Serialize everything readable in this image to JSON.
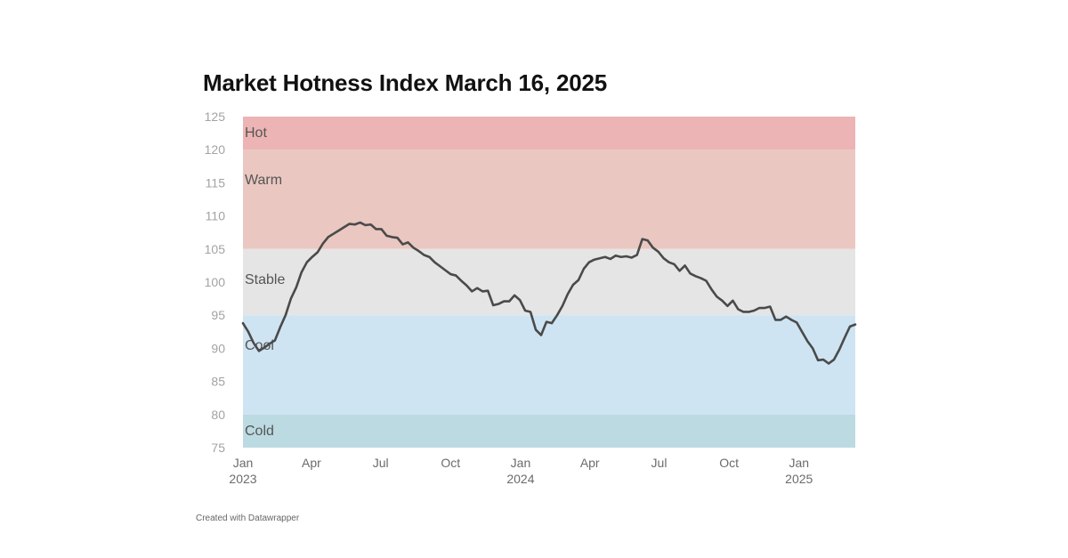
{
  "title": "Market Hotness Index March 16, 2025",
  "footer": "Created with Datawrapper",
  "chart_data": {
    "type": "line",
    "title": "Market Hotness Index March 16, 2025",
    "xlabel": "",
    "ylabel": "",
    "ylim": [
      75,
      125
    ],
    "yticks": [
      75,
      80,
      85,
      90,
      95,
      100,
      105,
      110,
      115,
      120,
      125
    ],
    "x_range": [
      "2023-01-01",
      "2025-03-16"
    ],
    "x_ticks": [
      {
        "date": "2023-01-01",
        "label": "Jan",
        "year": "2023"
      },
      {
        "date": "2023-04-01",
        "label": "Apr",
        "year": ""
      },
      {
        "date": "2023-07-01",
        "label": "Jul",
        "year": ""
      },
      {
        "date": "2023-10-01",
        "label": "Oct",
        "year": ""
      },
      {
        "date": "2024-01-01",
        "label": "Jan",
        "year": "2024"
      },
      {
        "date": "2024-04-01",
        "label": "Apr",
        "year": ""
      },
      {
        "date": "2024-07-01",
        "label": "Jul",
        "year": ""
      },
      {
        "date": "2024-10-01",
        "label": "Oct",
        "year": ""
      },
      {
        "date": "2025-01-01",
        "label": "Jan",
        "year": "2025"
      }
    ],
    "bands": [
      {
        "label": "Hot",
        "from": 120,
        "to": 125,
        "color": "#ecb4b4"
      },
      {
        "label": "Warm",
        "from": 105,
        "to": 120,
        "color": "#eac7c1"
      },
      {
        "label": "Stable",
        "from": 95,
        "to": 105,
        "color": "#e5e5e5"
      },
      {
        "label": "Cool",
        "from": 80,
        "to": 95,
        "color": "#cfe4f2"
      },
      {
        "label": "Cold",
        "from": 75,
        "to": 80,
        "color": "#bcdae1"
      }
    ],
    "series": [
      {
        "color": "#4a4a4a",
        "points": [
          [
            "2023-01-01",
            93.8
          ],
          [
            "2023-01-08",
            92.5
          ],
          [
            "2023-01-15",
            90.8
          ],
          [
            "2023-01-22",
            89.6
          ],
          [
            "2023-01-29",
            90.1
          ],
          [
            "2023-02-05",
            90.7
          ],
          [
            "2023-02-12",
            91.2
          ],
          [
            "2023-02-19",
            93.2
          ],
          [
            "2023-02-26",
            95.0
          ],
          [
            "2023-03-05",
            97.5
          ],
          [
            "2023-03-12",
            99.2
          ],
          [
            "2023-03-19",
            101.5
          ],
          [
            "2023-03-26",
            103.0
          ],
          [
            "2023-04-02",
            103.8
          ],
          [
            "2023-04-09",
            104.5
          ],
          [
            "2023-04-16",
            105.8
          ],
          [
            "2023-04-23",
            106.8
          ],
          [
            "2023-04-30",
            107.3
          ],
          [
            "2023-05-07",
            107.8
          ],
          [
            "2023-05-14",
            108.3
          ],
          [
            "2023-05-21",
            108.8
          ],
          [
            "2023-05-28",
            108.7
          ],
          [
            "2023-06-04",
            109.0
          ],
          [
            "2023-06-11",
            108.6
          ],
          [
            "2023-06-18",
            108.7
          ],
          [
            "2023-06-25",
            108.0
          ],
          [
            "2023-07-02",
            108.0
          ],
          [
            "2023-07-09",
            107.0
          ],
          [
            "2023-07-16",
            106.8
          ],
          [
            "2023-07-23",
            106.7
          ],
          [
            "2023-07-30",
            105.7
          ],
          [
            "2023-08-06",
            106.0
          ],
          [
            "2023-08-13",
            105.2
          ],
          [
            "2023-08-20",
            104.7
          ],
          [
            "2023-08-27",
            104.1
          ],
          [
            "2023-09-03",
            103.8
          ],
          [
            "2023-09-10",
            103.0
          ],
          [
            "2023-09-17",
            102.4
          ],
          [
            "2023-09-24",
            101.8
          ],
          [
            "2023-10-01",
            101.2
          ],
          [
            "2023-10-08",
            101.0
          ],
          [
            "2023-10-15",
            100.2
          ],
          [
            "2023-10-22",
            99.5
          ],
          [
            "2023-10-29",
            98.6
          ],
          [
            "2023-11-05",
            99.1
          ],
          [
            "2023-11-12",
            98.6
          ],
          [
            "2023-11-19",
            98.7
          ],
          [
            "2023-11-26",
            96.5
          ],
          [
            "2023-12-03",
            96.7
          ],
          [
            "2023-12-10",
            97.1
          ],
          [
            "2023-12-17",
            97.1
          ],
          [
            "2023-12-24",
            98.0
          ],
          [
            "2023-12-31",
            97.3
          ],
          [
            "2024-01-07",
            95.7
          ],
          [
            "2024-01-14",
            95.5
          ],
          [
            "2024-01-21",
            92.8
          ],
          [
            "2024-01-28",
            92.0
          ],
          [
            "2024-02-04",
            94.0
          ],
          [
            "2024-02-11",
            93.8
          ],
          [
            "2024-02-18",
            95.0
          ],
          [
            "2024-02-25",
            96.4
          ],
          [
            "2024-03-03",
            98.2
          ],
          [
            "2024-03-10",
            99.6
          ],
          [
            "2024-03-17",
            100.3
          ],
          [
            "2024-03-24",
            102.0
          ],
          [
            "2024-03-31",
            103.0
          ],
          [
            "2024-04-07",
            103.4
          ],
          [
            "2024-04-14",
            103.6
          ],
          [
            "2024-04-21",
            103.8
          ],
          [
            "2024-04-28",
            103.5
          ],
          [
            "2024-05-05",
            104.0
          ],
          [
            "2024-05-12",
            103.8
          ],
          [
            "2024-05-19",
            103.9
          ],
          [
            "2024-05-26",
            103.7
          ],
          [
            "2024-06-02",
            104.1
          ],
          [
            "2024-06-09",
            106.5
          ],
          [
            "2024-06-16",
            106.3
          ],
          [
            "2024-06-23",
            105.2
          ],
          [
            "2024-06-30",
            104.6
          ],
          [
            "2024-07-07",
            103.6
          ],
          [
            "2024-07-14",
            103.0
          ],
          [
            "2024-07-21",
            102.7
          ],
          [
            "2024-07-28",
            101.7
          ],
          [
            "2024-08-04",
            102.5
          ],
          [
            "2024-08-11",
            101.3
          ],
          [
            "2024-08-18",
            100.9
          ],
          [
            "2024-08-25",
            100.6
          ],
          [
            "2024-09-01",
            100.2
          ],
          [
            "2024-09-08",
            98.9
          ],
          [
            "2024-09-15",
            97.8
          ],
          [
            "2024-09-22",
            97.2
          ],
          [
            "2024-09-29",
            96.4
          ],
          [
            "2024-10-06",
            97.2
          ],
          [
            "2024-10-13",
            95.9
          ],
          [
            "2024-10-20",
            95.5
          ],
          [
            "2024-10-27",
            95.5
          ],
          [
            "2024-11-03",
            95.7
          ],
          [
            "2024-11-10",
            96.1
          ],
          [
            "2024-11-17",
            96.1
          ],
          [
            "2024-11-24",
            96.3
          ],
          [
            "2024-12-01",
            94.3
          ],
          [
            "2024-12-08",
            94.3
          ],
          [
            "2024-12-15",
            94.8
          ],
          [
            "2024-12-22",
            94.3
          ],
          [
            "2024-12-29",
            93.9
          ],
          [
            "2025-01-05",
            92.5
          ],
          [
            "2025-01-12",
            91.1
          ],
          [
            "2025-01-19",
            90.0
          ],
          [
            "2025-01-26",
            88.2
          ],
          [
            "2025-02-02",
            88.3
          ],
          [
            "2025-02-09",
            87.7
          ],
          [
            "2025-02-16",
            88.3
          ],
          [
            "2025-02-23",
            89.8
          ],
          [
            "2025-03-02",
            91.6
          ],
          [
            "2025-03-09",
            93.3
          ],
          [
            "2025-03-16",
            93.6
          ]
        ]
      }
    ],
    "grid": false,
    "legend": "none"
  }
}
